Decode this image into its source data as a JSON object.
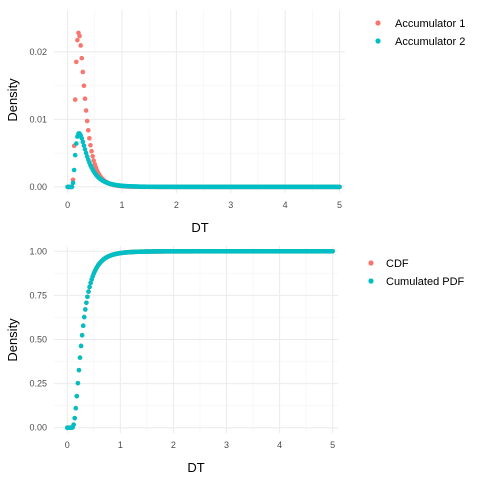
{
  "chart_data": [
    {
      "type": "scatter",
      "title": "",
      "xlabel": "DT",
      "ylabel": "Density",
      "xlim": [
        -0.25,
        5.1
      ],
      "ylim": [
        -0.0009,
        0.0262
      ],
      "xticks": [
        0,
        1,
        2,
        3,
        4,
        5
      ],
      "yticks": [
        0.0,
        0.01,
        0.02
      ],
      "ytick_labels": [
        "0.00",
        "0.01",
        "0.02"
      ],
      "grid": true,
      "legend_position": "right-top",
      "series": [
        {
          "name": "Accumulator 1",
          "color": "#F8766D",
          "distribution": {
            "kind": "lognormal",
            "x0": 0.07,
            "mu": -1.66,
            "sigma": 0.6,
            "scale": 0.00545
          },
          "x_range": [
            0,
            5
          ],
          "step": 0.02
        },
        {
          "name": "Accumulator 2",
          "color": "#00BFC4",
          "distribution": {
            "kind": "lognormal",
            "x0": 0.07,
            "mu": -1.5,
            "sigma": 0.68,
            "scale": 0.0024
          },
          "x_range": [
            0,
            5
          ],
          "step": 0.02
        }
      ]
    },
    {
      "type": "scatter",
      "title": "",
      "xlabel": "DT",
      "ylabel": "Density",
      "xlim": [
        -0.25,
        5.1
      ],
      "ylim": [
        -0.03,
        1.03
      ],
      "xticks": [
        0,
        1,
        2,
        3,
        4,
        5
      ],
      "yticks": [
        0.0,
        0.25,
        0.5,
        0.75,
        1.0
      ],
      "ytick_labels": [
        "0.00",
        "0.25",
        "0.50",
        "0.75",
        "1.00"
      ],
      "grid": true,
      "legend_position": "right-top",
      "series": [
        {
          "name": "CDF",
          "color": "#F8766D",
          "distribution": {
            "kind": "lognormal-cdf",
            "x0": 0.07,
            "mu": -1.6,
            "sigma": 0.66
          },
          "x_range": [
            0,
            5
          ],
          "step": 0.02
        },
        {
          "name": "Cumulated PDF",
          "color": "#00BFC4",
          "distribution": {
            "kind": "lognormal-cdf",
            "x0": 0.07,
            "mu": -1.6,
            "sigma": 0.66
          },
          "x_range": [
            0,
            5
          ],
          "step": 0.02
        }
      ]
    }
  ]
}
